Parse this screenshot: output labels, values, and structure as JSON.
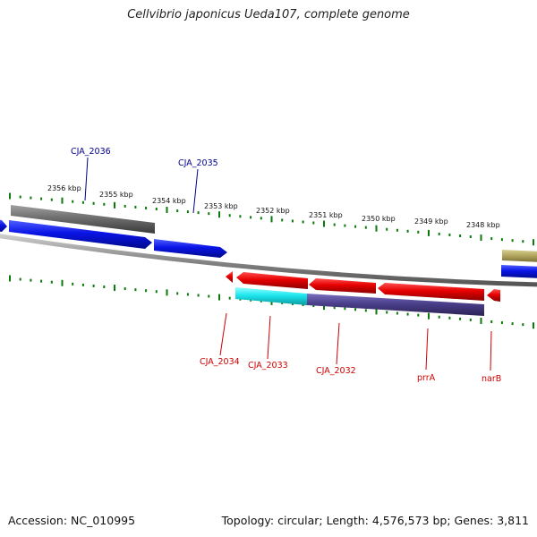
{
  "title": "Cellvibrio japonicus Ueda107, complete genome",
  "footer": {
    "accession": "Accession: NC_010995",
    "stats": "Topology: circular; Length: 4,576,573 bp; Genes: 3,811"
  },
  "colors": {
    "forward_gene": "#0a14e6",
    "reverse_gene": "#e60000",
    "grey_feature": "#6e6e6e",
    "cyan_feature": "#1ee6ee",
    "purple_feature": "#4a3f8a",
    "olive_feature": "#b4a860",
    "tick": "#0a7a0a",
    "backbone": "#888888",
    "forward_label": "#00008b",
    "reverse_label": "#cc0000"
  },
  "kbp_labels": [
    "2356 kbp",
    "2355 kbp",
    "2354 kbp",
    "2353 kbp",
    "2352 kbp",
    "2351 kbp",
    "2350 kbp",
    "2349 kbp",
    "2348 kbp"
  ],
  "forward_gene_labels": [
    "CJA_2036",
    "CJA_2035"
  ],
  "reverse_gene_labels": [
    "CJA_2034",
    "CJA_2033",
    "CJA_2032",
    "prrA",
    "narB"
  ]
}
